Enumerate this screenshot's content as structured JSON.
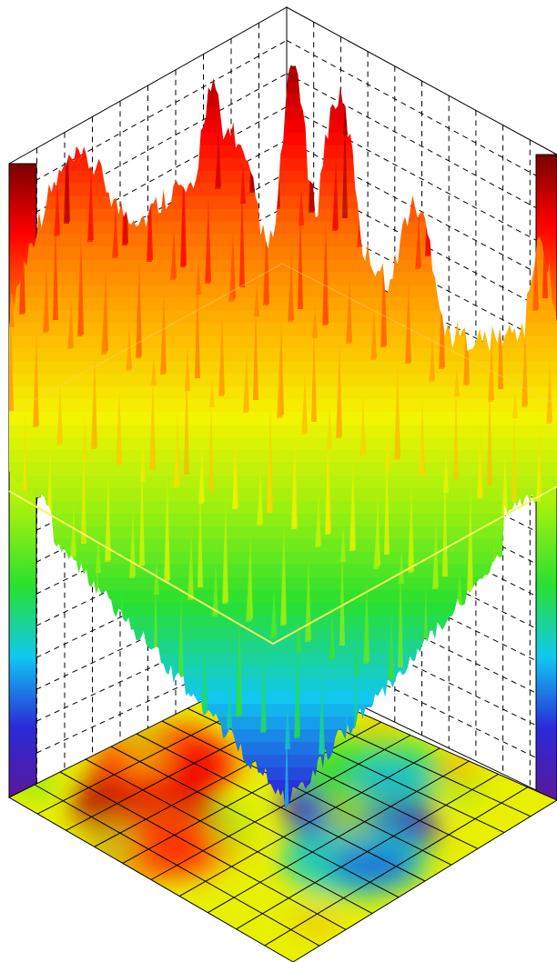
{
  "chart_data": {
    "type": "surface",
    "title": "",
    "xlabel": "",
    "ylabel": "",
    "zlabel": "",
    "grid": true,
    "grid_divisions": 10,
    "floor_contour": true,
    "colorbars": "left and right",
    "colormap": [
      "#5a189a",
      "#2a2ad8",
      "#10c8f0",
      "#28e030",
      "#9af010",
      "#f4f400",
      "#ffb000",
      "#ff6a00",
      "#ff0000",
      "#7a0000"
    ],
    "surface_profile_back_to_front": [
      {
        "t": 0.0,
        "z": 0.62
      },
      {
        "t": 0.06,
        "z": 0.95
      },
      {
        "t": 0.1,
        "z": 0.82
      },
      {
        "t": 0.15,
        "z": 0.97
      },
      {
        "t": 0.2,
        "z": 1.0
      },
      {
        "t": 0.28,
        "z": 0.98
      },
      {
        "t": 0.36,
        "z": 0.88
      },
      {
        "t": 0.45,
        "z": 0.7
      },
      {
        "t": 0.55,
        "z": 0.55
      },
      {
        "t": 0.65,
        "z": 0.4
      },
      {
        "t": 0.75,
        "z": 0.22
      },
      {
        "t": 0.82,
        "z": 0.08
      },
      {
        "t": 0.86,
        "z": 0.0
      },
      {
        "t": 0.92,
        "z": 0.2
      },
      {
        "t": 1.0,
        "z": 0.45
      }
    ],
    "left_profile": [
      {
        "t": 0.0,
        "z": 0.55
      },
      {
        "t": 0.15,
        "z": 0.7
      },
      {
        "t": 0.35,
        "z": 0.83
      },
      {
        "t": 0.55,
        "z": 0.78
      },
      {
        "t": 0.75,
        "z": 0.6
      },
      {
        "t": 1.0,
        "z": 0.5
      }
    ],
    "right_profile": [
      {
        "t": 0.0,
        "z": 0.6
      },
      {
        "t": 0.25,
        "z": 0.68
      },
      {
        "t": 0.5,
        "z": 0.55
      },
      {
        "t": 0.75,
        "z": 0.52
      },
      {
        "t": 1.0,
        "z": 0.58
      }
    ],
    "reference_plane_level": 0.5,
    "floor_hotspots": [
      {
        "u": 0.25,
        "v": 0.25,
        "level": 0.95
      },
      {
        "u": 0.15,
        "v": 0.45,
        "level": 0.85
      },
      {
        "u": 0.4,
        "v": 0.15,
        "level": 0.8
      },
      {
        "u": 0.72,
        "v": 0.58,
        "level": 0.05
      },
      {
        "u": 0.62,
        "v": 0.65,
        "level": 0.1
      },
      {
        "u": 0.8,
        "v": 0.45,
        "level": 0.25
      },
      {
        "u": 0.55,
        "v": 0.8,
        "level": 0.35
      }
    ]
  }
}
